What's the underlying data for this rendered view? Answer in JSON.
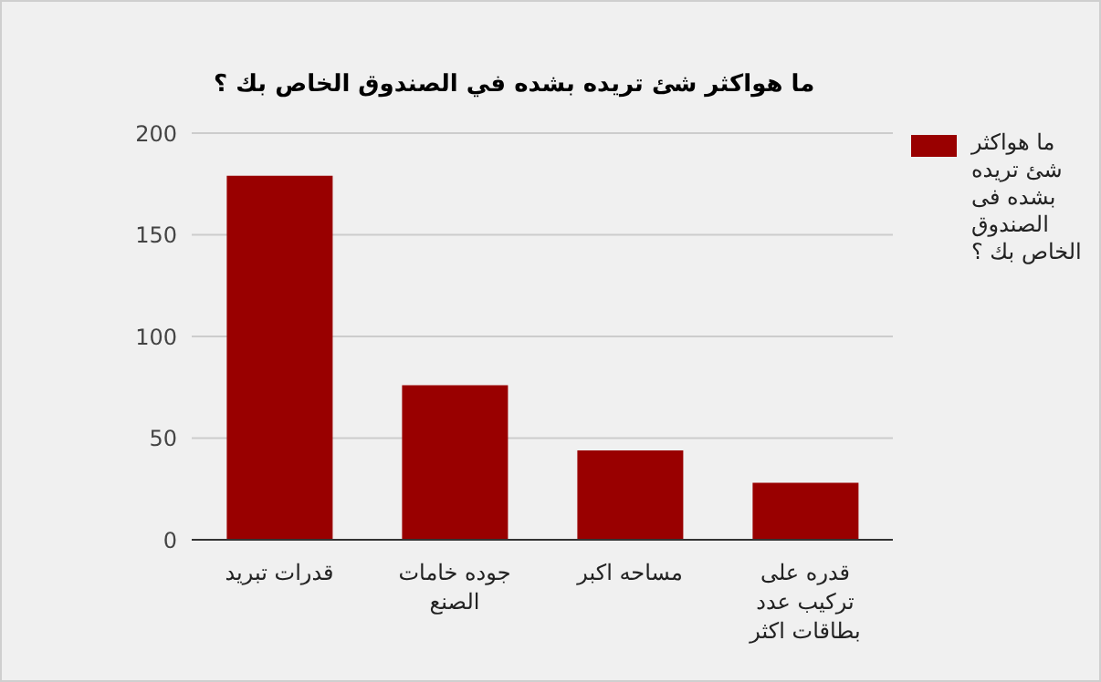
{
  "chart_data": {
    "type": "bar",
    "title": "ما هواكثر شئ تريده بشده في الصندوق الخاص بك ؟",
    "categories": [
      "قدرات تبريد",
      "جوده خامات الصنع",
      "مساحه اكبر",
      "قدره على تركيب عدد بطاقات اكثر"
    ],
    "series": [
      {
        "name": "ما هواكثر شئ تريده بشده فى الصندوق الخاص بك ؟",
        "color": "#990000",
        "values": [
          179,
          76,
          44,
          28
        ]
      }
    ],
    "ylim": [
      0,
      200
    ],
    "yticks": [
      0,
      50,
      100,
      150,
      200
    ],
    "grid": "y",
    "legend": "right"
  }
}
